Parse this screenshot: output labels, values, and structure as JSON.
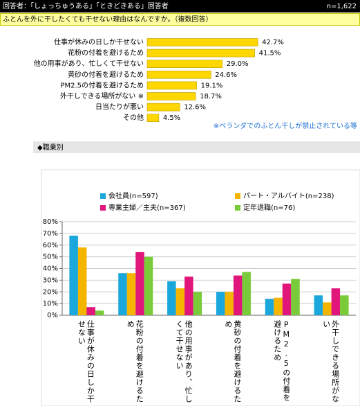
{
  "header": {
    "title": "回答者：「しょっちゅうある」「ときどきある」回答者",
    "n": "n=1,622"
  },
  "question": "ふとんを外に干したくても干せない理由はなんですか。（複数回答）",
  "section": "◆職業別",
  "chart_data": [
    {
      "type": "hbar",
      "categories": [
        "仕事が休みの日しか干せない",
        "花粉の付着を避けるため",
        "他の用事があり、忙しくて干せない",
        "黄砂の付着を避けるため",
        "PM2.5の付着を避けるため",
        "外干しできる場所がない ※",
        "日当たりが悪い",
        "その他"
      ],
      "values": [
        42.7,
        41.5,
        29.0,
        24.6,
        19.1,
        18.7,
        12.6,
        4.5
      ],
      "value_labels": [
        "42.7%",
        "41.5%",
        "29.0%",
        "24.6%",
        "19.1%",
        "18.7%",
        "12.6%",
        "4.5%"
      ],
      "color": "#ffd700",
      "note": "※ベランダでのふとん干しが禁止されている等"
    },
    {
      "type": "grouped-bar",
      "categories": [
        "仕事が休みの日しか干せない",
        "花粉の付着を避けるため",
        "他の用事があり、忙しくて干せない",
        "黄砂の付着を避けるため",
        "PM2.5の付着を避けるため",
        "外干しできる場所がない"
      ],
      "series": [
        {
          "name": "会社員(n=597)",
          "color": "#1aa7dc",
          "values": [
            68,
            36,
            29,
            20,
            14,
            17
          ]
        },
        {
          "name": "パート・アルバイト(n=238)",
          "color": "#f5b400",
          "values": [
            58,
            36,
            23,
            20,
            15,
            11
          ]
        },
        {
          "name": "専業主婦／主夫(n=367)",
          "color": "#e0167a",
          "values": [
            7,
            54,
            33,
            34,
            27,
            23
          ]
        },
        {
          "name": "定年退職(n=76)",
          "color": "#7acb3a",
          "values": [
            4,
            50,
            20,
            37,
            31,
            17
          ]
        }
      ],
      "ylim": [
        0,
        80
      ],
      "yticks": [
        {
          "value": 0,
          "label": "0%"
        },
        {
          "value": 10,
          "label": "10%"
        },
        {
          "value": 20,
          "label": "20%"
        },
        {
          "value": 30,
          "label": "30%"
        },
        {
          "value": 40,
          "label": "40%"
        },
        {
          "value": 50,
          "label": "50%"
        },
        {
          "value": 60,
          "label": "60%"
        },
        {
          "value": 70,
          "label": "70%"
        },
        {
          "value": 80,
          "label": "80%"
        }
      ],
      "grid": true
    }
  ]
}
